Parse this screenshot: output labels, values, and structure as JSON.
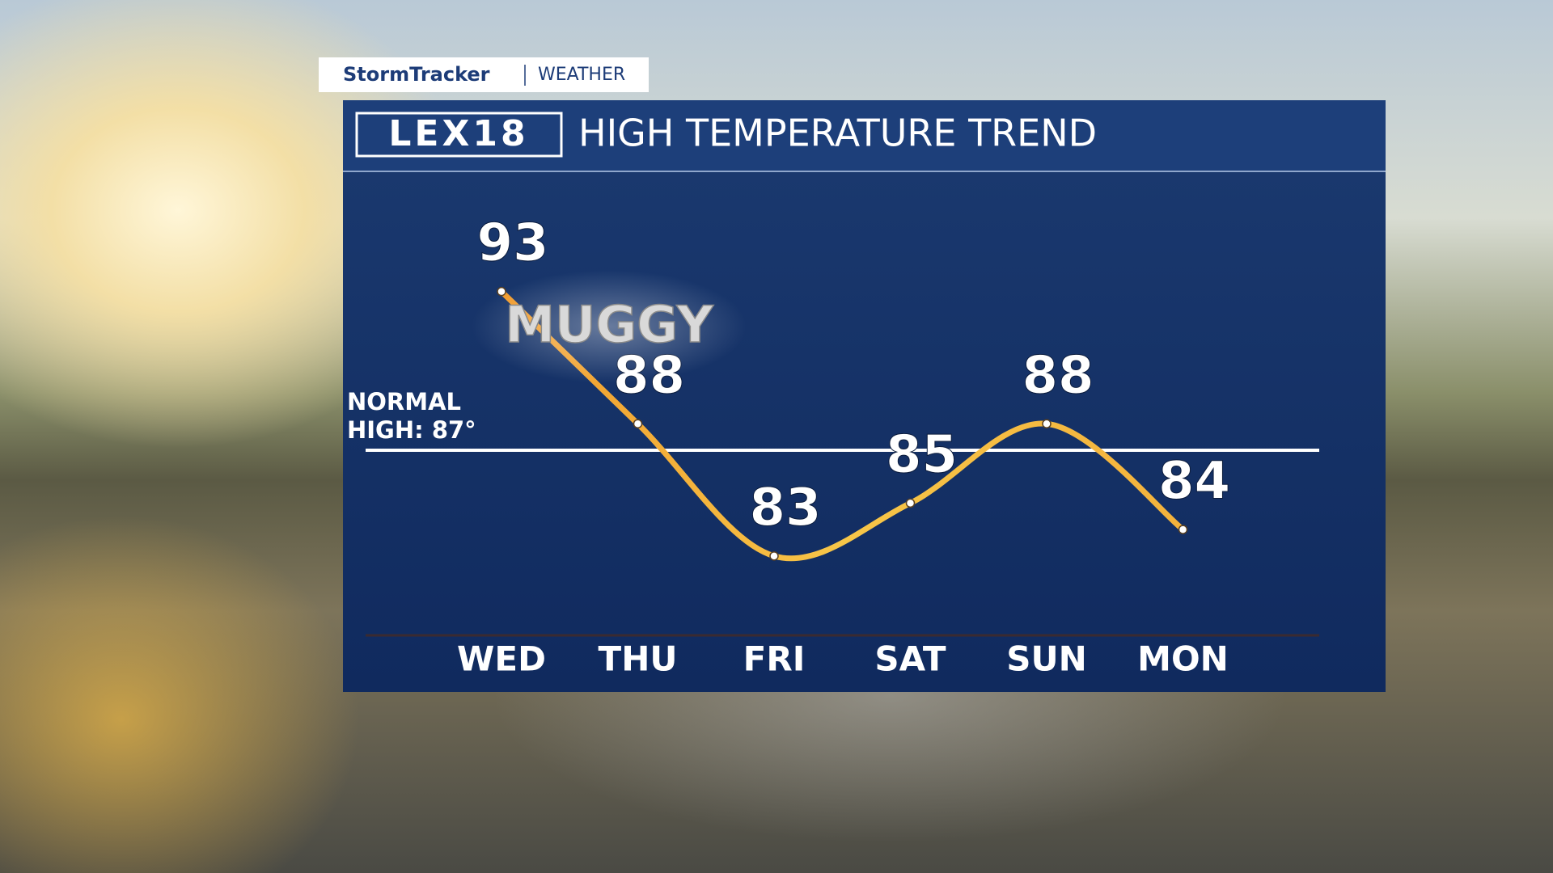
{
  "branding": {
    "network": "StormTracker",
    "section": "WEATHER",
    "logo": "LEX18"
  },
  "chart_data": {
    "type": "line",
    "title": "HIGH TEMPERATURE TREND",
    "categories": [
      "WED",
      "THU",
      "FRI",
      "SAT",
      "SUN",
      "MON"
    ],
    "values": [
      93,
      88,
      83,
      85,
      88,
      84
    ],
    "ylim": [
      80,
      98
    ],
    "reference_line": {
      "value": 87,
      "label": "NORMAL HIGH: 87°"
    },
    "annotation": "MUGGY",
    "color": "#f4b13c"
  }
}
